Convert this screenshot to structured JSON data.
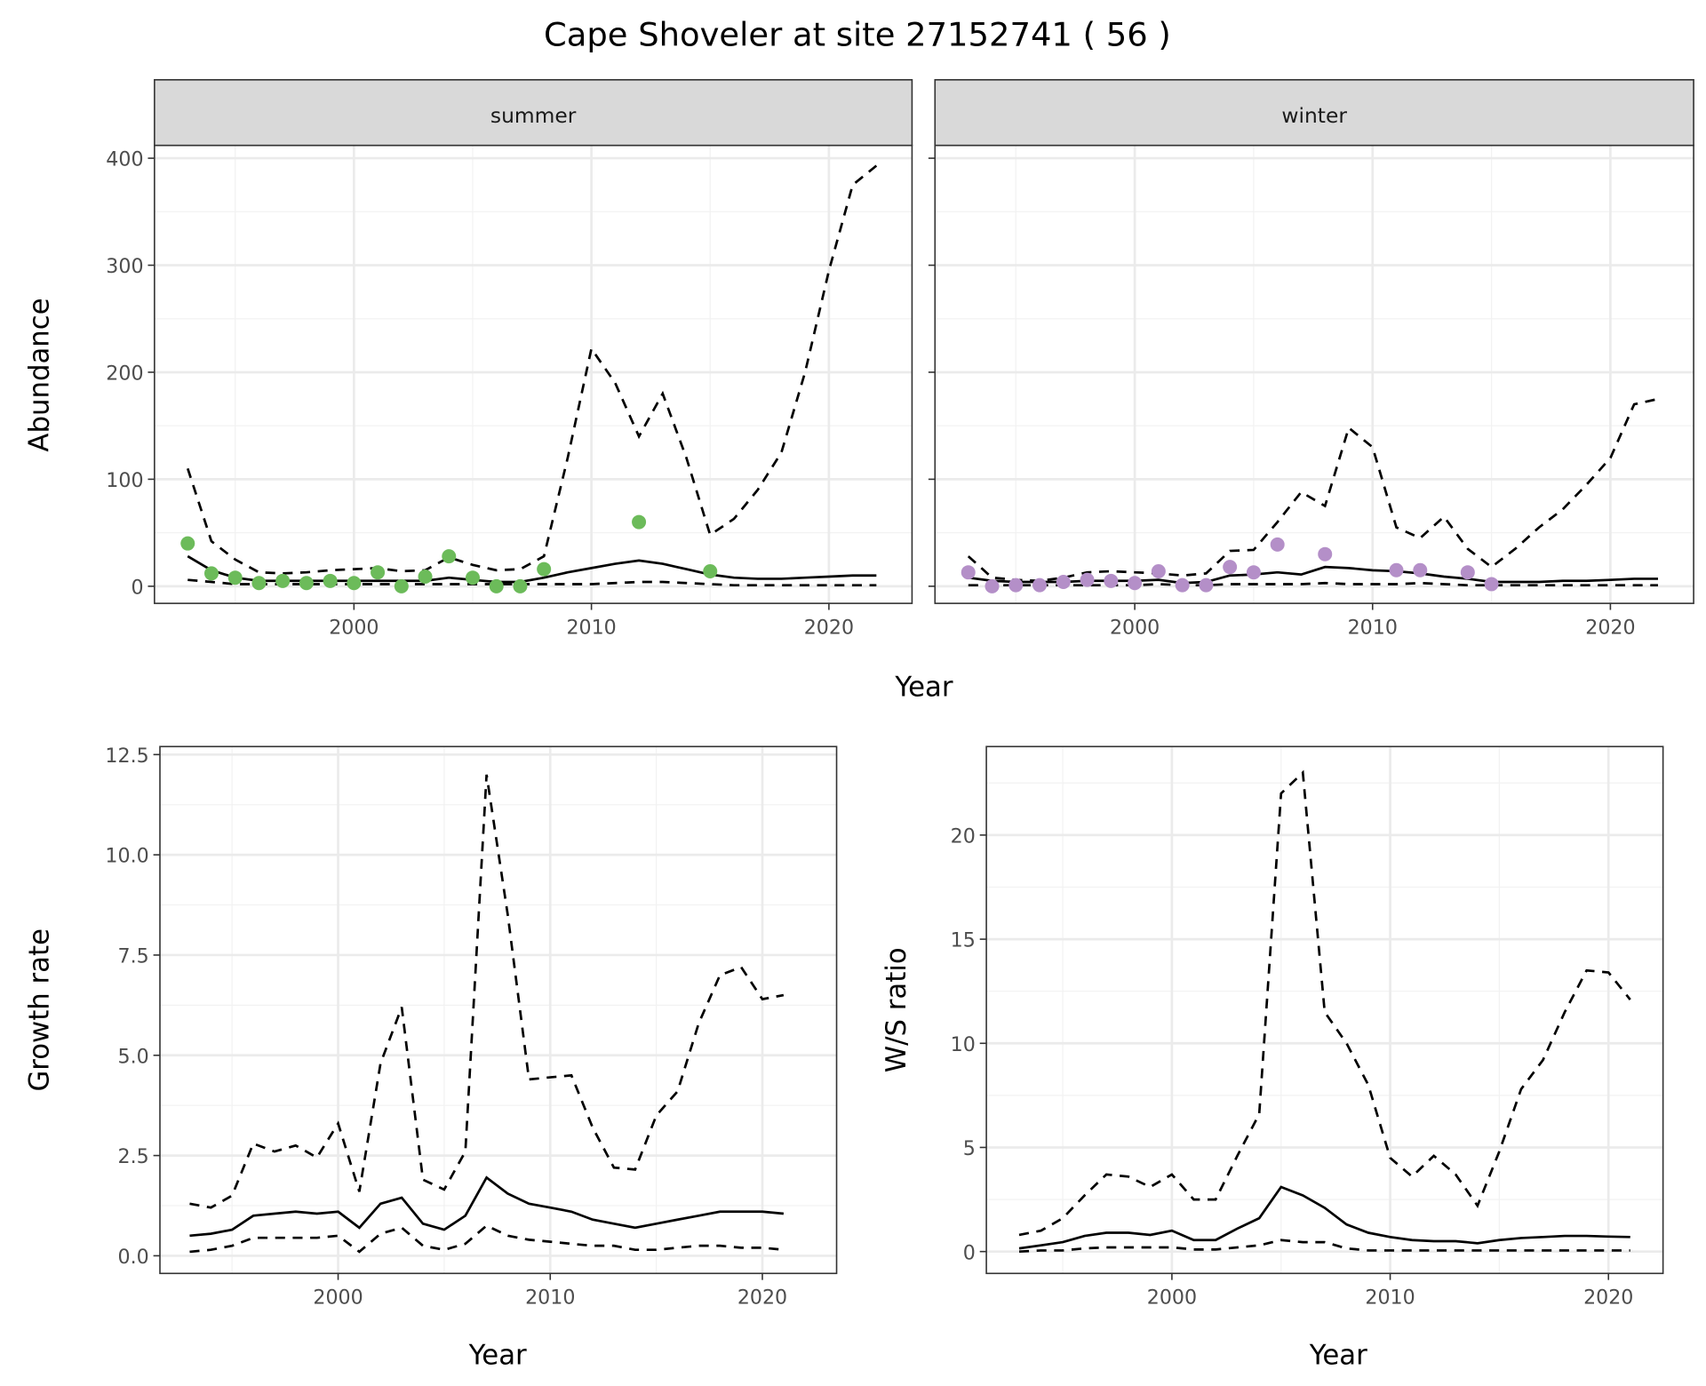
{
  "title": "Cape Shoveler at site 27152741 ( 56 )",
  "colors": {
    "summer_points": "#6cbb5a",
    "winter_points": "#b48fc8",
    "strip_fill": "#d9d9d9",
    "lines": "#000000"
  },
  "chart_data": [
    {
      "type": "line",
      "ylabel": "Abundance",
      "xlabel": "Year",
      "xlim": [
        1991.6,
        2023.5
      ],
      "ylim": [
        -16,
        412
      ],
      "xticks": [
        2000,
        2010,
        2020
      ],
      "yticks": [
        0,
        100,
        200,
        300,
        400
      ],
      "grid": true,
      "facets": [
        {
          "label": "summer",
          "point_color": "#6cbb5a",
          "points": {
            "x": [
              1993,
              1994,
              1995,
              1996,
              1997,
              1998,
              1999,
              2000,
              2001,
              2002,
              2003,
              2004,
              2005,
              2006,
              2007,
              2008,
              2012,
              2015
            ],
            "y": [
              40,
              12,
              8,
              3,
              5,
              3,
              5,
              3,
              13,
              0,
              9,
              28,
              8,
              0,
              0,
              16,
              60,
              14
            ]
          },
          "x": [
            1993,
            1994,
            1995,
            1996,
            1997,
            1998,
            1999,
            2000,
            2001,
            2002,
            2003,
            2004,
            2005,
            2006,
            2007,
            2008,
            2009,
            2010,
            2011,
            2012,
            2013,
            2014,
            2015,
            2016,
            2017,
            2018,
            2019,
            2020,
            2021,
            2022
          ],
          "line": [
            28,
            15,
            8,
            5,
            5,
            5,
            5,
            5,
            5,
            5,
            5,
            8,
            6,
            4,
            4,
            8,
            13,
            17,
            21,
            24,
            21,
            16,
            11,
            8,
            7,
            7,
            8,
            9,
            10,
            10
          ],
          "upper_dashed": [
            110,
            42,
            25,
            13,
            12,
            13,
            15,
            16,
            17,
            14,
            15,
            27,
            20,
            15,
            16,
            28,
            120,
            222,
            190,
            140,
            180,
            120,
            48,
            63,
            90,
            125,
            200,
            295,
            375,
            393
          ],
          "lower_dashed": [
            6,
            4,
            2,
            2,
            2,
            2,
            2,
            2,
            2,
            2,
            2,
            2,
            2,
            2,
            2,
            2,
            2,
            2,
            3,
            4,
            4,
            3,
            2,
            1,
            1,
            1,
            1,
            1,
            1,
            1
          ]
        },
        {
          "label": "winter",
          "point_color": "#b48fc8",
          "points": {
            "x": [
              1993,
              1994,
              1995,
              1996,
              1997,
              1998,
              1999,
              2000,
              2001,
              2002,
              2003,
              2004,
              2005,
              2006,
              2008,
              2011,
              2012,
              2014,
              2015
            ],
            "y": [
              13,
              0,
              1,
              1,
              4,
              6,
              5,
              3,
              14,
              1,
              1,
              18,
              13,
              39,
              30,
              15,
              15,
              13,
              2
            ]
          },
          "x": [
            1993,
            1994,
            1995,
            1996,
            1997,
            1998,
            1999,
            2000,
            2001,
            2002,
            2003,
            2004,
            2005,
            2006,
            2007,
            2008,
            2009,
            2010,
            2011,
            2012,
            2013,
            2014,
            2015,
            2016,
            2017,
            2018,
            2019,
            2020,
            2021,
            2022
          ],
          "line": [
            8,
            5,
            4,
            4,
            4,
            5,
            5,
            5,
            6,
            3,
            4,
            10,
            11,
            13,
            11,
            18,
            17,
            15,
            14,
            12,
            9,
            7,
            4,
            4,
            4,
            5,
            5,
            6,
            7,
            7
          ],
          "upper_dashed": [
            28,
            8,
            6,
            5,
            8,
            13,
            14,
            13,
            12,
            10,
            12,
            33,
            34,
            60,
            88,
            75,
            148,
            130,
            55,
            45,
            65,
            35,
            18,
            35,
            55,
            72,
            95,
            120,
            170,
            175
          ],
          "lower_dashed": [
            1,
            1,
            1,
            1,
            1,
            1,
            1,
            1,
            2,
            1,
            1,
            2,
            2,
            2,
            2,
            3,
            2,
            2,
            2,
            3,
            2,
            1,
            1,
            1,
            1,
            1,
            1,
            1,
            1,
            1
          ]
        }
      ]
    },
    {
      "type": "line",
      "ylabel": "Growth rate",
      "xlabel": "Year",
      "xlim": [
        1991.6,
        2023.5
      ],
      "ylim": [
        -0.44,
        12.7
      ],
      "xticks": [
        2000,
        2010,
        2020
      ],
      "yticks": [
        "0.0",
        "2.5",
        "5.0",
        "7.5",
        "10.0",
        "12.5"
      ],
      "grid": true,
      "x": [
        1993,
        1994,
        1995,
        1996,
        1997,
        1998,
        1999,
        2000,
        2001,
        2002,
        2003,
        2004,
        2005,
        2006,
        2007,
        2008,
        2009,
        2010,
        2011,
        2012,
        2013,
        2014,
        2015,
        2016,
        2017,
        2018,
        2019,
        2020,
        2021
      ],
      "line": [
        0.5,
        0.55,
        0.65,
        1.0,
        1.05,
        1.1,
        1.05,
        1.1,
        0.7,
        1.3,
        1.45,
        0.8,
        0.65,
        1.0,
        1.95,
        1.55,
        1.3,
        1.2,
        1.1,
        0.9,
        0.8,
        0.7,
        0.8,
        0.9,
        1.0,
        1.1,
        1.1,
        1.1,
        1.05
      ],
      "upper_dashed": [
        1.3,
        1.2,
        1.5,
        2.8,
        2.6,
        2.75,
        2.45,
        3.3,
        1.6,
        4.8,
        6.2,
        1.9,
        1.65,
        2.6,
        12.0,
        8.5,
        4.4,
        4.45,
        4.5,
        3.2,
        2.2,
        2.15,
        3.5,
        4.1,
        5.8,
        7.0,
        7.2,
        6.4,
        6.5
      ],
      "lower_dashed": [
        0.1,
        0.15,
        0.25,
        0.45,
        0.45,
        0.45,
        0.45,
        0.5,
        0.1,
        0.55,
        0.7,
        0.25,
        0.15,
        0.3,
        0.75,
        0.5,
        0.4,
        0.35,
        0.3,
        0.25,
        0.25,
        0.15,
        0.15,
        0.2,
        0.25,
        0.25,
        0.2,
        0.2,
        0.15
      ]
    },
    {
      "type": "line",
      "ylabel": "W/S ratio",
      "xlabel": "Year",
      "xlim": [
        1991.5,
        2022.5
      ],
      "ylim": [
        -1.05,
        24.25
      ],
      "xticks": [
        2000,
        2010,
        2020
      ],
      "yticks": [
        0,
        5,
        10,
        15,
        20
      ],
      "grid": true,
      "x": [
        1993,
        1994,
        1995,
        1996,
        1997,
        1998,
        1999,
        2000,
        2001,
        2002,
        2003,
        2004,
        2005,
        2006,
        2007,
        2008,
        2009,
        2010,
        2011,
        2012,
        2013,
        2014,
        2015,
        2016,
        2017,
        2018,
        2019,
        2020,
        2021
      ],
      "line": [
        0.15,
        0.3,
        0.45,
        0.75,
        0.9,
        0.9,
        0.8,
        1.0,
        0.55,
        0.55,
        1.1,
        1.6,
        3.1,
        2.7,
        2.1,
        1.3,
        0.9,
        0.7,
        0.55,
        0.5,
        0.5,
        0.4,
        0.55,
        0.65,
        0.7,
        0.75,
        0.75,
        0.72,
        0.7
      ],
      "upper_dashed": [
        0.8,
        1.0,
        1.6,
        2.7,
        3.7,
        3.6,
        3.1,
        3.7,
        2.5,
        2.5,
        4.6,
        6.6,
        22.0,
        23.0,
        11.5,
        10.0,
        8.0,
        4.5,
        3.6,
        4.6,
        3.7,
        2.2,
        4.8,
        7.8,
        9.2,
        11.5,
        13.5,
        13.4,
        12.1
      ],
      "lower_dashed": [
        0.0,
        0.05,
        0.05,
        0.15,
        0.2,
        0.2,
        0.2,
        0.2,
        0.1,
        0.1,
        0.2,
        0.3,
        0.55,
        0.45,
        0.45,
        0.15,
        0.05,
        0.05,
        0.05,
        0.05,
        0.05,
        0.05,
        0.05,
        0.05,
        0.05,
        0.05,
        0.05,
        0.05,
        0.05
      ]
    }
  ]
}
